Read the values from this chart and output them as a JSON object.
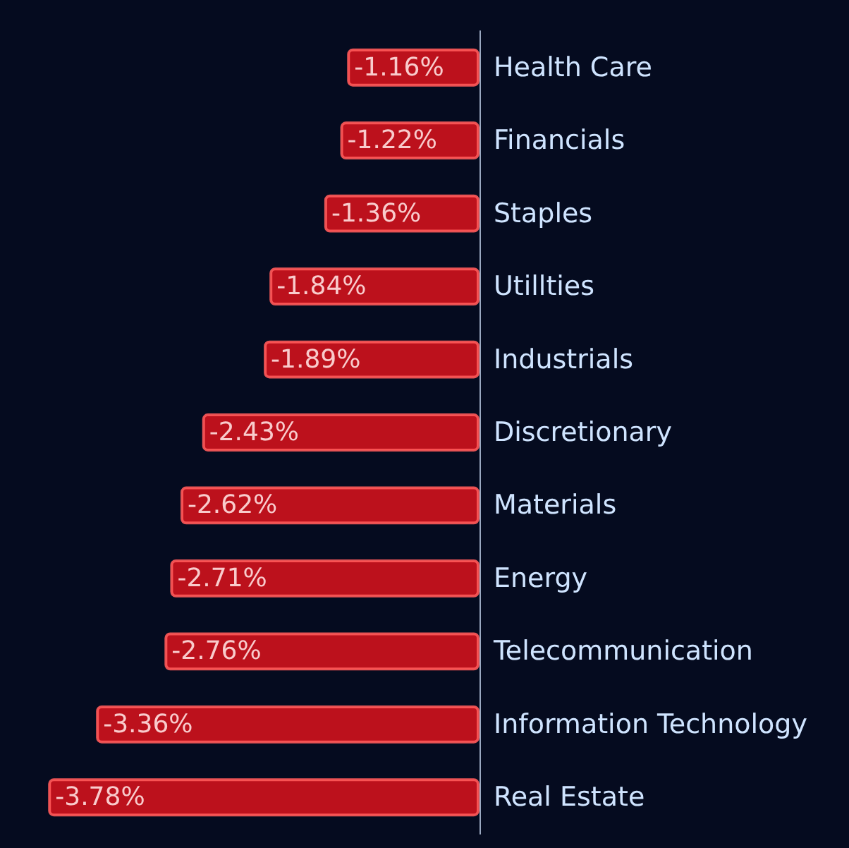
{
  "chart_data": {
    "type": "bar",
    "orientation": "horizontal",
    "categories": [
      "Health Care",
      "Financials",
      "Staples",
      "Utillties",
      "Industrials",
      "Discretionary",
      "Materials",
      "Energy",
      "Telecommunication",
      "Information Technology",
      "Real Estate"
    ],
    "values": [
      -1.16,
      -1.22,
      -1.36,
      -1.84,
      -1.89,
      -2.43,
      -2.62,
      -2.71,
      -2.76,
      -3.36,
      -3.78
    ],
    "value_labels": [
      "-1.16%",
      "-1.22%",
      "-1.36%",
      "-1.84%",
      "-1.89%",
      "-2.43%",
      "-2.62%",
      "-2.71%",
      "-2.76%",
      "-3.36%",
      "-3.78%"
    ],
    "color": "#d0121c"
  }
}
